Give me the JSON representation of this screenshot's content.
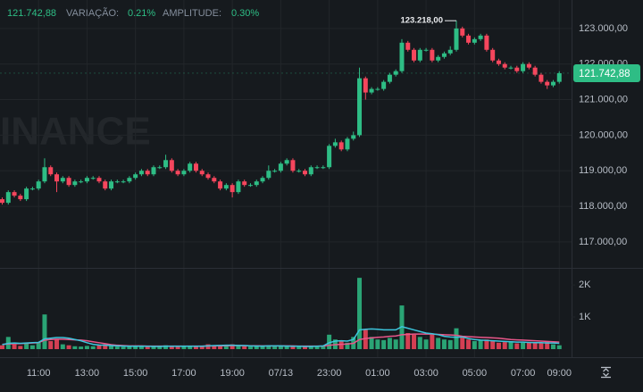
{
  "header": {
    "price": "121.742,88",
    "change_label": "VARIAÇÃO:",
    "change": "0.21%",
    "range_label": "AMPLITUDE:",
    "range": "0.30%"
  },
  "watermark": "INANCE",
  "chart_data": {
    "type": "candlestick",
    "up_color": "#2ebd85",
    "down_color": "#f6465d",
    "grid": true,
    "categories": [
      null,
      null,
      null,
      null,
      null,
      null,
      "11:00",
      null,
      null,
      null,
      null,
      null,
      null,
      null,
      "13:00",
      null,
      null,
      null,
      null,
      null,
      null,
      null,
      "15:00",
      null,
      null,
      null,
      null,
      null,
      null,
      null,
      "17:00",
      null,
      null,
      null,
      null,
      null,
      null,
      null,
      "19:00",
      null,
      null,
      null,
      null,
      null,
      null,
      null,
      "07/13",
      null,
      null,
      null,
      null,
      null,
      null,
      null,
      "23:00",
      null,
      null,
      null,
      null,
      null,
      null,
      null,
      "01:00",
      null,
      null,
      null,
      null,
      null,
      null,
      null,
      "03:00",
      null,
      null,
      null,
      null,
      null,
      null,
      null,
      "05:00",
      null,
      null,
      null,
      null,
      null,
      null,
      null,
      "07:00",
      null,
      null,
      null,
      null,
      null,
      "09:00"
    ],
    "open": [
      118200,
      118100,
      118400,
      118300,
      118200,
      118500,
      118500,
      118700,
      119100,
      118900,
      118700,
      118800,
      118600,
      118700,
      118700,
      118800,
      118800,
      118700,
      118500,
      118700,
      118700,
      118700,
      118800,
      118900,
      119000,
      118900,
      119100,
      119100,
      119300,
      119000,
      118900,
      119000,
      119200,
      119000,
      118900,
      118800,
      118700,
      118500,
      118600,
      118400,
      118700,
      118600,
      118600,
      118700,
      118800,
      119000,
      119000,
      119200,
      119300,
      119000,
      119000,
      118900,
      119100,
      119100,
      119100,
      119700,
      119800,
      119600,
      119900,
      120000,
      121600,
      121200,
      121300,
      121300,
      121500,
      121700,
      121800,
      122600,
      122400,
      122100,
      122400,
      122400,
      122100,
      122200,
      122300,
      122400,
      123000,
      122800,
      122600,
      122700,
      122800,
      122400,
      122100,
      122000,
      121900,
      121900,
      121800,
      122000,
      121900,
      121700,
      121500,
      121400,
      121500
    ],
    "high": [
      118250,
      118450,
      118450,
      118350,
      118550,
      118550,
      118750,
      119350,
      119150,
      118950,
      118850,
      118850,
      118750,
      118750,
      118850,
      118850,
      118850,
      118750,
      118750,
      118750,
      118750,
      118850,
      118950,
      119050,
      119050,
      119150,
      119150,
      119450,
      119350,
      119050,
      119050,
      119250,
      119250,
      119050,
      118950,
      118850,
      118750,
      118650,
      118650,
      118750,
      118750,
      118650,
      118750,
      118850,
      119150,
      119050,
      119250,
      119350,
      119350,
      119050,
      119050,
      119150,
      119150,
      119150,
      119750,
      119900,
      119850,
      119950,
      120100,
      121900,
      121650,
      121350,
      121350,
      121550,
      121750,
      121850,
      122700,
      122650,
      122450,
      122450,
      122450,
      122450,
      122250,
      122350,
      122500,
      123218,
      123050,
      122850,
      122750,
      122850,
      122850,
      122450,
      122150,
      122050,
      121950,
      121950,
      122050,
      122050,
      121950,
      121750,
      121550,
      121550,
      121800
    ],
    "low": [
      118050,
      118050,
      118250,
      118150,
      118150,
      118450,
      118450,
      118650,
      118850,
      118400,
      118650,
      118550,
      118550,
      118650,
      118650,
      118750,
      118650,
      118450,
      118450,
      118650,
      118650,
      118650,
      118750,
      118850,
      118850,
      118850,
      119050,
      119050,
      118950,
      118850,
      118850,
      118950,
      118950,
      118850,
      118750,
      118650,
      118450,
      118450,
      118250,
      118350,
      118550,
      118550,
      118550,
      118650,
      118750,
      118950,
      118950,
      119150,
      118950,
      118950,
      118850,
      118850,
      119050,
      119050,
      119050,
      119650,
      119550,
      119550,
      119850,
      119950,
      121000,
      121150,
      121250,
      121250,
      121450,
      121650,
      121750,
      122350,
      122050,
      122050,
      122350,
      122050,
      122050,
      122150,
      122250,
      122350,
      122750,
      122550,
      122550,
      122650,
      122350,
      122050,
      121950,
      121850,
      121850,
      121750,
      121750,
      121850,
      121650,
      121450,
      121300,
      121350,
      121450
    ],
    "close": [
      118100,
      118400,
      118300,
      118200,
      118500,
      118500,
      118700,
      119100,
      118900,
      118700,
      118800,
      118600,
      118700,
      118700,
      118800,
      118800,
      118700,
      118500,
      118700,
      118700,
      118700,
      118800,
      118900,
      119000,
      118900,
      119100,
      119100,
      119300,
      119000,
      118900,
      119000,
      119200,
      119000,
      118900,
      118800,
      118700,
      118500,
      118600,
      118400,
      118700,
      118600,
      118600,
      118700,
      118800,
      119000,
      119000,
      119200,
      119300,
      119000,
      119000,
      118900,
      119100,
      119100,
      119100,
      119700,
      119800,
      119600,
      119900,
      120000,
      121600,
      121200,
      121300,
      121300,
      121500,
      121700,
      121800,
      122600,
      122400,
      122100,
      122400,
      122400,
      122100,
      122200,
      122300,
      122400,
      123000,
      122800,
      122600,
      122700,
      122800,
      122400,
      122100,
      122000,
      121900,
      121900,
      121800,
      122000,
      121900,
      121700,
      121500,
      121400,
      121500,
      121743
    ],
    "volume": [
      120,
      380,
      150,
      100,
      180,
      120,
      200,
      1080,
      250,
      300,
      150,
      120,
      90,
      80,
      100,
      90,
      120,
      150,
      100,
      80,
      70,
      90,
      80,
      100,
      70,
      90,
      80,
      120,
      110,
      90,
      80,
      100,
      90,
      100,
      150,
      100,
      130,
      110,
      150,
      120,
      90,
      80,
      90,
      100,
      120,
      80,
      90,
      110,
      100,
      80,
      70,
      90,
      80,
      100,
      450,
      300,
      250,
      200,
      380,
      2220,
      600,
      380,
      300,
      280,
      350,
      300,
      1360,
      500,
      450,
      380,
      300,
      450,
      350,
      300,
      280,
      650,
      400,
      300,
      250,
      280,
      300,
      250,
      200,
      220,
      250,
      180,
      200,
      220,
      200,
      180,
      250,
      150,
      120
    ],
    "volume_ma": [
      {
        "color": "#e8578a",
        "values": [
          150,
          160,
          170,
          170,
          180,
          190,
          200,
          280,
          300,
          310,
          310,
          300,
          290,
          280,
          260,
          230,
          200,
          170,
          140,
          120,
          110,
          100,
          100,
          100,
          95,
          95,
          95,
          95,
          95,
          95,
          95,
          95,
          95,
          95,
          100,
          100,
          105,
          105,
          110,
          110,
          110,
          105,
          105,
          100,
          100,
          100,
          100,
          100,
          100,
          95,
          95,
          95,
          95,
          95,
          120,
          140,
          150,
          160,
          180,
          300,
          330,
          350,
          370,
          380,
          400,
          410,
          450,
          460,
          470,
          470,
          470,
          470,
          460,
          450,
          440,
          430,
          400,
          390,
          380,
          370,
          360,
          350,
          340,
          320,
          300,
          290,
          280,
          270,
          260,
          250,
          240,
          230,
          220
        ]
      },
      {
        "color": "#3cc5dc",
        "values": [
          140,
          180,
          190,
          180,
          190,
          200,
          210,
          320,
          340,
          360,
          360,
          340,
          300,
          260,
          200,
          150,
          130,
          120,
          110,
          100,
          95,
          90,
          90,
          90,
          90,
          85,
          85,
          90,
          90,
          90,
          90,
          90,
          90,
          90,
          100,
          110,
          115,
          120,
          120,
          115,
          110,
          100,
          95,
          95,
          100,
          100,
          100,
          95,
          90,
          90,
          85,
          85,
          90,
          100,
          200,
          250,
          260,
          250,
          300,
          600,
          620,
          630,
          620,
          600,
          600,
          600,
          700,
          650,
          600,
          550,
          500,
          480,
          450,
          400,
          380,
          370,
          380,
          330,
          300,
          280,
          270,
          260,
          250,
          240,
          230,
          220,
          220,
          210,
          200,
          200,
          190,
          190,
          180
        ]
      }
    ],
    "ylim": [
      116270,
      123800
    ],
    "yticks": [
      {
        "value": 123000,
        "label": "123.000,00"
      },
      {
        "value": 122000,
        "label": "122.000,00"
      },
      {
        "value": 121000,
        "label": "121.000,00"
      },
      {
        "value": 120000,
        "label": "120.000,00"
      },
      {
        "value": 119000,
        "label": "119.000,00"
      },
      {
        "value": 118000,
        "label": "118.000,00"
      },
      {
        "value": 117000,
        "label": "117.000,00"
      }
    ],
    "volume_ylim": [
      0,
      2530
    ],
    "volume_yticks": [
      {
        "value": 2000,
        "label": "2K"
      },
      {
        "value": 1000,
        "label": "1K"
      }
    ],
    "last_price": {
      "value": 121742.88,
      "label": "121.742,88",
      "color": "#2ebd85"
    },
    "max_marker": {
      "value": 123218,
      "label": "123.218,00"
    }
  }
}
